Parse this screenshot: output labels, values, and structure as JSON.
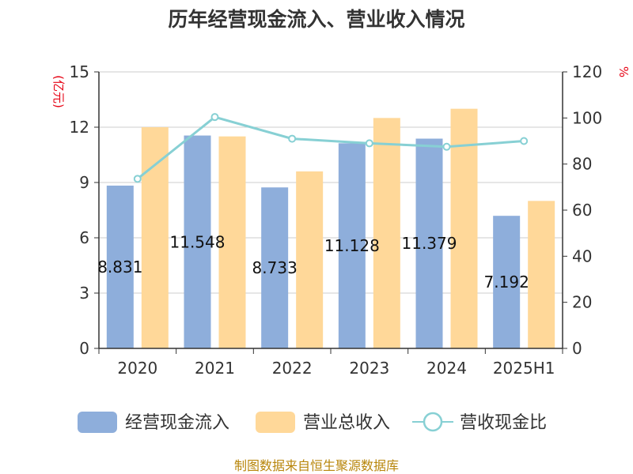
{
  "chart_data": {
    "type": "bar",
    "title": "历年经营现金流入、营业收入情况",
    "categories": [
      "2020",
      "2021",
      "2022",
      "2023",
      "2024",
      "2025H1"
    ],
    "series": [
      {
        "name": "经营现金流入",
        "type": "bar",
        "axis": "left",
        "color": "#8eaedb",
        "values": [
          8.831,
          11.548,
          8.733,
          11.128,
          11.379,
          7.192
        ],
        "labels": [
          "8.831",
          "11.548",
          "8.733",
          "11.128",
          "11.379",
          "7.192"
        ]
      },
      {
        "name": "营业总收入",
        "type": "bar",
        "axis": "left",
        "color": "#ffd899",
        "values": [
          12.0,
          11.5,
          9.6,
          12.5,
          13.0,
          8.0
        ]
      },
      {
        "name": "营收现金比",
        "type": "line",
        "axis": "right",
        "color": "#87d0d4",
        "values": [
          73.6,
          100.4,
          91.0,
          89.0,
          87.5,
          90.0
        ]
      }
    ],
    "left_axis": {
      "unit": "(亿元)",
      "ylim": [
        0,
        15
      ],
      "ticks": [
        "0",
        "3",
        "6",
        "9",
        "12",
        "15"
      ]
    },
    "right_axis": {
      "unit": "%",
      "ylim": [
        0,
        120
      ],
      "ticks": [
        "0",
        "20",
        "40",
        "60",
        "80",
        "100",
        "120"
      ]
    },
    "grid": true,
    "legend_position": "bottom"
  },
  "footer": {
    "source": "制图数据来自恒生聚源数据库"
  }
}
